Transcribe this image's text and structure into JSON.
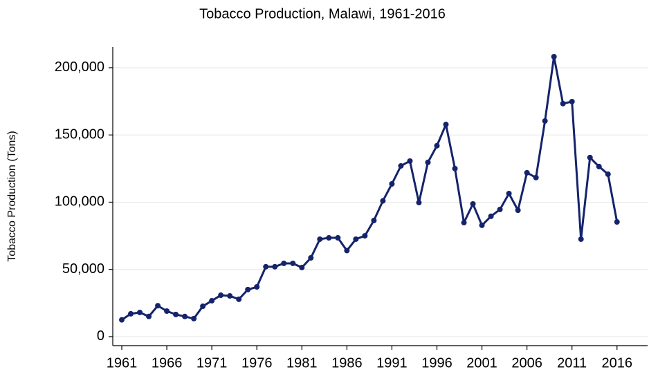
{
  "chart_data": {
    "type": "line",
    "title": "Tobacco Production, Malawi, 1961-2016",
    "y_label": "Tobacco Production (Tons)",
    "x": [
      1961,
      1962,
      1963,
      1964,
      1965,
      1966,
      1967,
      1968,
      1969,
      1970,
      1971,
      1972,
      1973,
      1974,
      1975,
      1976,
      1977,
      1978,
      1979,
      1980,
      1981,
      1982,
      1983,
      1984,
      1985,
      1986,
      1987,
      1988,
      1989,
      1990,
      1991,
      1992,
      1993,
      1994,
      1995,
      1996,
      1997,
      1998,
      1999,
      2000,
      2001,
      2002,
      2003,
      2004,
      2005,
      2006,
      2007,
      2008,
      2009,
      2010,
      2011,
      2012,
      2013,
      2014,
      2015,
      2016
    ],
    "series": [
      {
        "name": "Tobacco Production",
        "color": "#14236b",
        "values": [
          12500,
          17000,
          18000,
          15000,
          23000,
          19000,
          16500,
          15000,
          13400,
          22600,
          26700,
          30800,
          30300,
          27800,
          35000,
          37000,
          52000,
          52000,
          54500,
          54500,
          51400,
          58600,
          72500,
          73500,
          73500,
          64000,
          72500,
          75000,
          86400,
          101000,
          113600,
          127000,
          130600,
          99700,
          129600,
          142000,
          157800,
          125000,
          84800,
          98700,
          82800,
          89500,
          94600,
          106400,
          94000,
          121900,
          118300,
          160400,
          208200,
          173300,
          174800,
          72500,
          133200,
          126500,
          120800,
          85300
        ]
      }
    ],
    "xlim": [
      1960,
      2019.4
    ],
    "xticks": [
      1961,
      1966,
      1971,
      1976,
      1981,
      1986,
      1991,
      1996,
      2001,
      2006,
      2011,
      2016
    ],
    "ylim": [
      -6700,
      215400
    ],
    "yticks": [
      0,
      {
        "value": 50000,
        "label": "50,000"
      },
      {
        "value": 100000,
        "label": "100,000"
      },
      {
        "value": 150000,
        "label": "150,000"
      },
      {
        "value": 200000,
        "label": "200,000"
      }
    ],
    "grid": true
  }
}
